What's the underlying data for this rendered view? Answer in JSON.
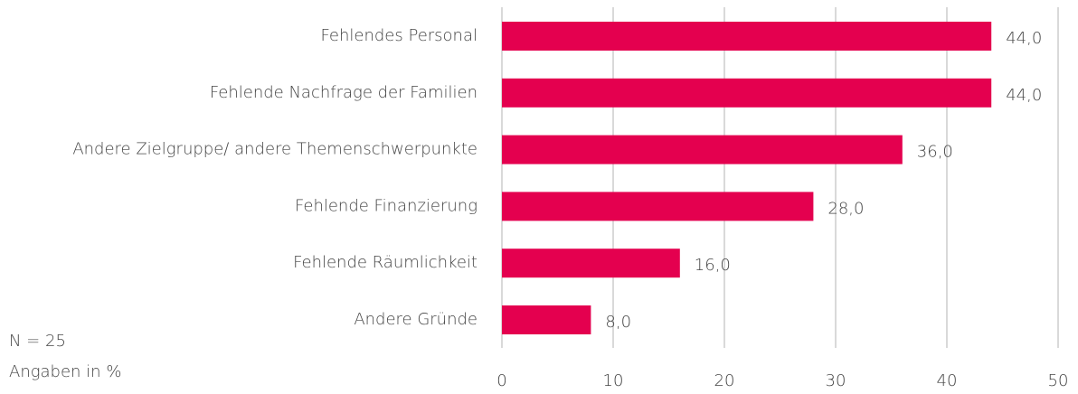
{
  "chart_data": {
    "type": "bar",
    "orientation": "horizontal",
    "categories": [
      "Fehlendes Personal",
      "Fehlende Nachfrage der Familien",
      "Andere Zielgruppe/ andere Themenschwerpunkte",
      "Fehlende Finanzierung",
      "Fehlende Räumlichkeit",
      "Andere Gründe"
    ],
    "values": [
      44,
      44,
      36,
      28,
      16,
      8
    ],
    "value_labels": [
      "44,0",
      "44,0",
      "36,0",
      "28,0",
      "16,0",
      "8,0"
    ],
    "color": "#e4004f",
    "xlim": [
      0,
      50
    ],
    "xticks": [
      0,
      10,
      20,
      30,
      40,
      50
    ],
    "grid": true,
    "notes": [
      "N = 25",
      "Angaben in %"
    ]
  }
}
